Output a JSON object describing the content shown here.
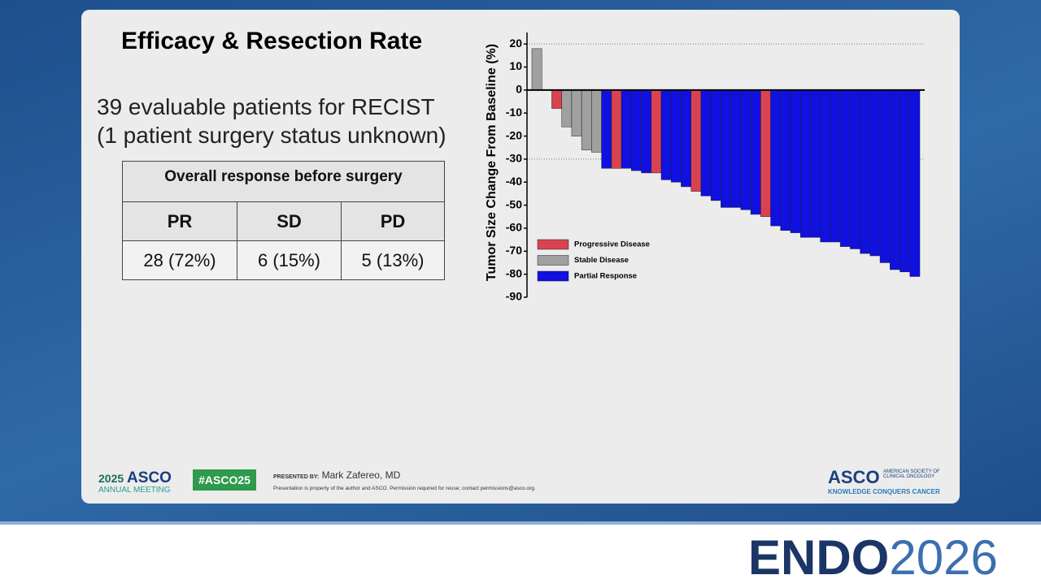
{
  "slide": {
    "title": "Efficacy & Resection Rate",
    "text": [
      "39 evaluable patients for RECIST",
      "(1 patient surgery status unknown)"
    ]
  },
  "table": {
    "caption": "Overall response before surgery",
    "header": [
      "PR",
      "SD",
      "PD"
    ],
    "rows": [
      [
        "28 (72%)",
        "6 (15%)",
        "5 (13%)"
      ]
    ]
  },
  "chart_data": {
    "type": "bar",
    "y_label": "Tumor Size Change From Baseline (%)",
    "categories": [
      null,
      null,
      null,
      null,
      null,
      null,
      null,
      null,
      null,
      null,
      null,
      null,
      null,
      null,
      null,
      null,
      null,
      null,
      null,
      null,
      null,
      null,
      null,
      null,
      null,
      null,
      null,
      null,
      null,
      null,
      null,
      null,
      null,
      null,
      null,
      null,
      null,
      null,
      null
    ],
    "series": [
      {
        "name": "Progressive Disease",
        "color": "#d9434f",
        "values": [
          null,
          null,
          -8,
          null,
          null,
          null,
          null,
          null,
          -34,
          null,
          null,
          null,
          -36,
          null,
          null,
          null,
          -44,
          null,
          null,
          null,
          null,
          null,
          null,
          -55,
          null,
          null,
          null,
          null,
          null,
          null,
          null,
          null,
          null,
          null,
          null,
          null,
          null,
          null,
          null
        ]
      },
      {
        "name": "Stable Disease",
        "color": "#a0a0a0",
        "values": [
          18,
          null,
          null,
          -16,
          -20,
          -26,
          -27,
          null,
          null,
          null,
          null,
          null,
          null,
          null,
          null,
          null,
          null,
          null,
          null,
          null,
          null,
          null,
          null,
          null,
          null,
          null,
          null,
          null,
          null,
          null,
          null,
          null,
          null,
          null,
          null,
          null,
          null,
          null,
          null
        ]
      },
      {
        "name": "Partial Response",
        "color": "#1010e0",
        "values": [
          null,
          null,
          null,
          null,
          null,
          null,
          null,
          -34,
          null,
          -34,
          -35,
          -36,
          null,
          -39,
          -40,
          -42,
          null,
          -46,
          -48,
          -51,
          -51,
          -52,
          -54,
          null,
          -59,
          -61,
          -62,
          -64,
          -64,
          -66,
          -66,
          -68,
          -69,
          -71,
          -72,
          -75,
          -78,
          -79,
          -81
        ]
      }
    ],
    "ylim": [
      -90,
      25
    ],
    "yticks": [
      20,
      10,
      0,
      -10,
      -20,
      -30,
      -40,
      -50,
      -60,
      -70,
      -80,
      -90
    ],
    "ref_lines": [
      20,
      -30
    ],
    "legend": "bottom-left"
  },
  "footer": {
    "meeting_year": "2025",
    "meeting_org": "ASCO",
    "meeting_sub": "ANNUAL MEETING",
    "hashtag": "#ASCO25",
    "presented_by": "PRESENTED BY:",
    "presenter": "Mark Zafereo, MD",
    "notice": "Presentation is property of the author and ASCO. Permission required for reuse; contact permissions@asco.org.",
    "asco": "ASCO",
    "asco_full": "AMERICAN SOCIETY OF CLINICAL ONCOLOGY",
    "tagline": "KNOWLEDGE CONQUERS CANCER",
    "brand": "ENDO",
    "brand_year": "2026"
  }
}
